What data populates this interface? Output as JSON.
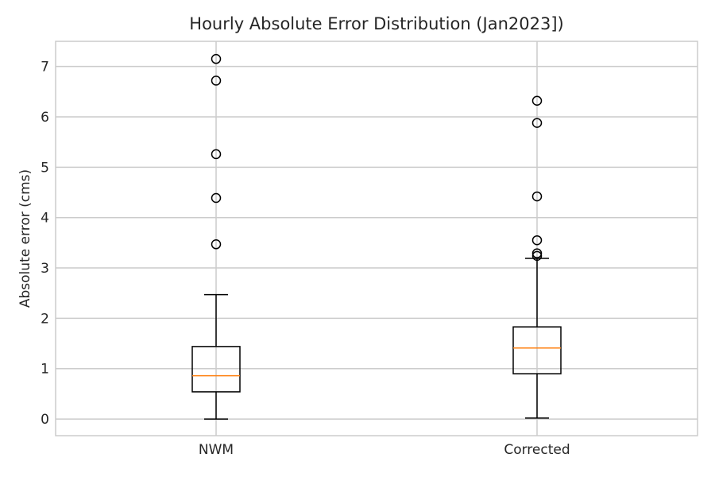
{
  "chart_data": {
    "type": "box",
    "title": "Hourly Absolute Error Distribution (Jan2023])",
    "xlabel": "",
    "ylabel": "Absolute error (cms)",
    "ylim": [
      -0.33,
      7.5
    ],
    "yticks": [
      0,
      1,
      2,
      3,
      4,
      5,
      6,
      7
    ],
    "categories": [
      "NWM",
      "Corrected"
    ],
    "grid": true,
    "colors": {
      "box": "#000000",
      "median": "#ff7f0e",
      "grid": "#cccccc",
      "frame": "#cccccc"
    },
    "boxes": [
      {
        "category": "NWM",
        "whisker_low": 0.0,
        "q1": 0.54,
        "median": 0.86,
        "q3": 1.44,
        "whisker_high": 2.47,
        "outliers": [
          3.47,
          4.39,
          5.26,
          6.72,
          7.15
        ]
      },
      {
        "category": "Corrected",
        "whisker_low": 0.02,
        "q1": 0.9,
        "median": 1.41,
        "q3": 1.83,
        "whisker_high": 3.19,
        "outliers": [
          3.24,
          3.29,
          3.55,
          4.42,
          5.88,
          6.32
        ]
      }
    ]
  }
}
